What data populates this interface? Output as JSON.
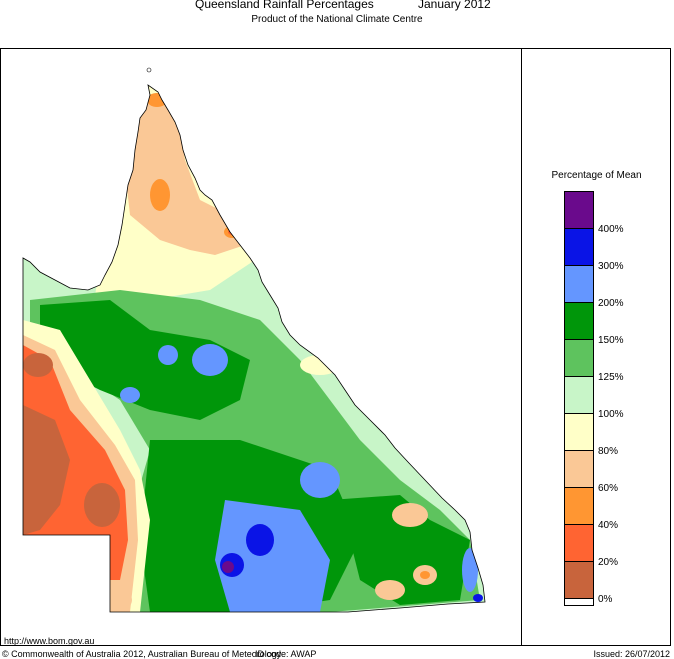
{
  "header": {
    "title": "Queensland Rainfall Percentages",
    "period": "January 2012",
    "subtitle": "Product of the National Climate Centre"
  },
  "legend": {
    "title": "Percentage of Mean",
    "bands": [
      {
        "color": "#6a0a8c",
        "label": "400%"
      },
      {
        "color": "#0a14e6",
        "label": "300%"
      },
      {
        "color": "#6496ff",
        "label": "200%"
      },
      {
        "color": "#00960a",
        "label": "150%"
      },
      {
        "color": "#5ec35e",
        "label": "125%"
      },
      {
        "color": "#c8f5c8",
        "label": "100%"
      },
      {
        "color": "#ffffc8",
        "label": "80%"
      },
      {
        "color": "#fac896",
        "label": "60%"
      },
      {
        "color": "#ff9632",
        "label": "40%"
      },
      {
        "color": "#ff6432",
        "label": "20%"
      },
      {
        "color": "#c8643c",
        "label": "0%"
      }
    ]
  },
  "footer": {
    "url": "http://www.bom.gov.au",
    "copyright": "© Commonwealth of Australia 2012, Australian Bureau of Meteorology",
    "id_code": "ID code: AWAP",
    "issued": "Issued: 26/07/2012"
  }
}
